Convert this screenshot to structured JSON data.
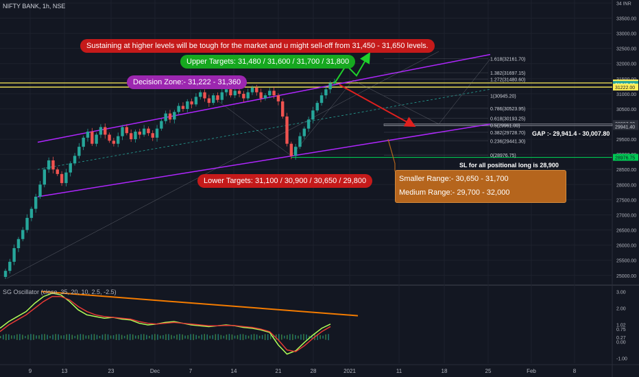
{
  "header": {
    "symbol_line": "NIFTY BANK, 1h, NSE",
    "oscillator_line": "SG Oscillator (close, 35, 20, 10, 2.5, -2.5)"
  },
  "colors": {
    "up": "#26a69a",
    "down": "#ef5350",
    "channel": "#b026ff",
    "zone": "#ffee58",
    "sl_line": "#00c853",
    "fib": "#9598a1",
    "orange": "#f57c00",
    "panel_bg": "#131722",
    "grid": "#1e222d"
  },
  "annotations": {
    "sustain": "Sustaining at higher levels will be tough for the market and u might sell-off from 31,450 - 31,650 levels.",
    "upper_targets": "Upper Targets: 31,480 / 31,600 / 31,700  / 31,800",
    "decision_zone": "Decision Zone:- 31,222 - 31,360",
    "lower_targets": "Lower Targets: 31,100 / 30,900 / 30,650 / 29,800",
    "smaller_range": "Smaller Range:- 30,650 - 31,700",
    "medium_range": "Medium Range:- 29,700 - 32,000",
    "gap": "GAP :- 29,941.4 - 30,007.80",
    "sl": "SL for all positional long is 28,900"
  },
  "chart_data": [
    {
      "type": "candlestick",
      "title": "NIFTY BANK, 1h, NSE",
      "ylim": [
        24700,
        34100
      ],
      "y_ticks": [
        "25000.00",
        "25500.00",
        "26000.00",
        "26500.00",
        "27000.00",
        "27500.00",
        "28000.00",
        "28500.00",
        "29000.00",
        "29500.00",
        "30000.00",
        "30500.00",
        "31000.00",
        "31500.00",
        "32000.00",
        "32500.00",
        "33000.00",
        "33500.00",
        "34 INR"
      ],
      "x_ticks": [
        "9",
        "13",
        "23",
        "Dec",
        "7",
        "14",
        "21",
        "28",
        "2021",
        "11",
        "18",
        "25",
        "Feb",
        "8"
      ],
      "closes": [
        25150,
        25450,
        25900,
        26200,
        26500,
        26900,
        27200,
        27600,
        28000,
        28500,
        28800,
        28500,
        28350,
        28050,
        28400,
        28700,
        28950,
        29250,
        29550,
        29750,
        29350,
        29650,
        29900,
        29650,
        29450,
        29350,
        29600,
        29900,
        29700,
        29500,
        29750,
        29650,
        29850,
        29700,
        29550,
        29850,
        30100,
        30350,
        30150,
        30400,
        30600,
        30500,
        30750,
        30650,
        30900,
        31050,
        30850,
        30700,
        30950,
        30800,
        31050,
        31150,
        30950,
        31100,
        31000,
        30850,
        31050,
        31200,
        31050,
        30850,
        30950,
        31100,
        30950,
        30750,
        30250,
        29350,
        28950,
        29250,
        29600,
        29850,
        30150,
        30450,
        30700,
        30950,
        31150,
        31350,
        31400
      ],
      "price_labels": [
        "31360.00",
        "31349.60",
        "31222.00",
        "30007.80",
        "29941.40",
        "28976.75"
      ],
      "fib_levels": [
        {
          "ratio": "1.618",
          "value": 32161.7,
          "label": "1.618(32161.70)"
        },
        {
          "ratio": "1.382",
          "value": 31697.15,
          "label": "1.382(31697.15)"
        },
        {
          "ratio": "1.272",
          "value": 31480.6,
          "label": "1.272(31480.60)"
        },
        {
          "ratio": "1",
          "value": 30945.2,
          "label": "1(30945.20)"
        },
        {
          "ratio": "0.786",
          "value": 30523.95,
          "label": "0.786(30523.95)"
        },
        {
          "ratio": "0.618",
          "value": 30193.25,
          "label": "0.618(30193.25)"
        },
        {
          "ratio": "0.5",
          "value": 29961.0,
          "label": "0.5(29961.00)"
        },
        {
          "ratio": "0.382",
          "value": 29728.7,
          "label": "0.382(29728.70)"
        },
        {
          "ratio": "0.236",
          "value": 29441.3,
          "label": "0.236(29441.30)"
        },
        {
          "ratio": "0",
          "value": 28976.75,
          "label": "0(28976.75)"
        }
      ],
      "decision_zone": [
        31222,
        31360
      ],
      "gap_zone": [
        29941.4,
        30007.8
      ],
      "stop_loss": 28900
    },
    {
      "type": "line",
      "title": "SG Oscillator (close, 35, 20, 10, 2.5, -2.5)",
      "ylim": [
        -1.3,
        3.3
      ],
      "y_ticks": [
        "3.00",
        "2.00",
        "1.02",
        "0.75",
        "0.27",
        "0.00",
        "-1.00"
      ],
      "series": [
        {
          "values": [
            0.8,
            1.2,
            1.5,
            1.8,
            2.3,
            2.7,
            2.9,
            2.8,
            2.4,
            1.9,
            1.6,
            1.5,
            1.4,
            1.45,
            1.35,
            1.3,
            1.1,
            1.0,
            1.05,
            1.15,
            1.2,
            1.1,
            1.0,
            0.95,
            0.9,
            0.95,
            1.0,
            0.95,
            0.85,
            0.8,
            0.7,
            0.55,
            -0.2,
            -0.75,
            -0.55,
            -0.05,
            0.4,
            0.8,
            1.05
          ]
        },
        {
          "values": [
            0.6,
            1.0,
            1.3,
            1.6,
            2.0,
            2.4,
            2.7,
            2.7,
            2.5,
            2.1,
            1.8,
            1.6,
            1.5,
            1.45,
            1.4,
            1.35,
            1.2,
            1.1,
            1.05,
            1.1,
            1.15,
            1.1,
            1.05,
            1.0,
            0.95,
            0.95,
            0.97,
            0.96,
            0.9,
            0.85,
            0.75,
            0.6,
            0.1,
            -0.5,
            -0.6,
            -0.25,
            0.2,
            0.6,
            0.9
          ]
        }
      ]
    }
  ]
}
